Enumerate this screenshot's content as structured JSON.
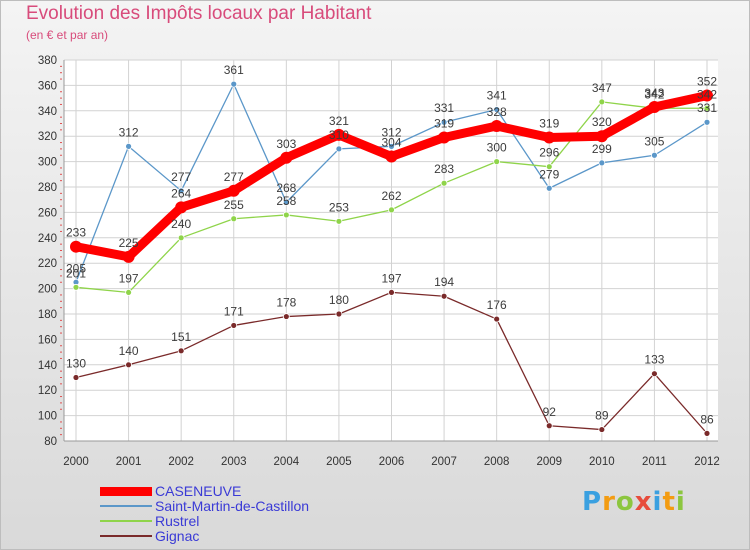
{
  "chart_data": {
    "type": "line",
    "title": "Evolution des Impôts locaux par Habitant",
    "subtitle": "(en € et par an)",
    "x": [
      "2000",
      "2001",
      "2002",
      "2003",
      "2004",
      "2005",
      "2006",
      "2007",
      "2008",
      "2009",
      "2010",
      "2011",
      "2012"
    ],
    "ylim": [
      80,
      380
    ],
    "yticks": [
      80,
      100,
      120,
      140,
      160,
      180,
      200,
      220,
      240,
      260,
      280,
      300,
      320,
      340,
      360,
      380
    ],
    "grid": true,
    "legend_position": "bottom-left",
    "series": [
      {
        "name": "CASENEUVE",
        "color": "#ff0000",
        "values": [
          233,
          225,
          264,
          277,
          303,
          321,
          304,
          319,
          328,
          319,
          320,
          343,
          352
        ]
      },
      {
        "name": "Saint-Martin-de-Castillon",
        "color": "#5b97c9",
        "values": [
          205,
          312,
          277,
          361,
          268,
          310,
          312,
          331,
          341,
          279,
          299,
          305,
          331
        ]
      },
      {
        "name": "Rustrel",
        "color": "#8fd44a",
        "values": [
          201,
          197,
          240,
          255,
          258,
          253,
          262,
          283,
          300,
          296,
          347,
          342,
          342
        ]
      },
      {
        "name": "Gignac",
        "color": "#7a2a2a",
        "values": [
          130,
          140,
          151,
          171,
          178,
          180,
          197,
          194,
          176,
          92,
          89,
          133,
          86
        ]
      }
    ]
  },
  "logo": {
    "letters": [
      "P",
      "r",
      "o",
      "x",
      "i",
      "t",
      "i"
    ],
    "colors": [
      "#3aa0e0",
      "#f39c12",
      "#8cc63f",
      "#e74c3c",
      "#3aa0e0",
      "#f39c12",
      "#8cc63f"
    ]
  }
}
